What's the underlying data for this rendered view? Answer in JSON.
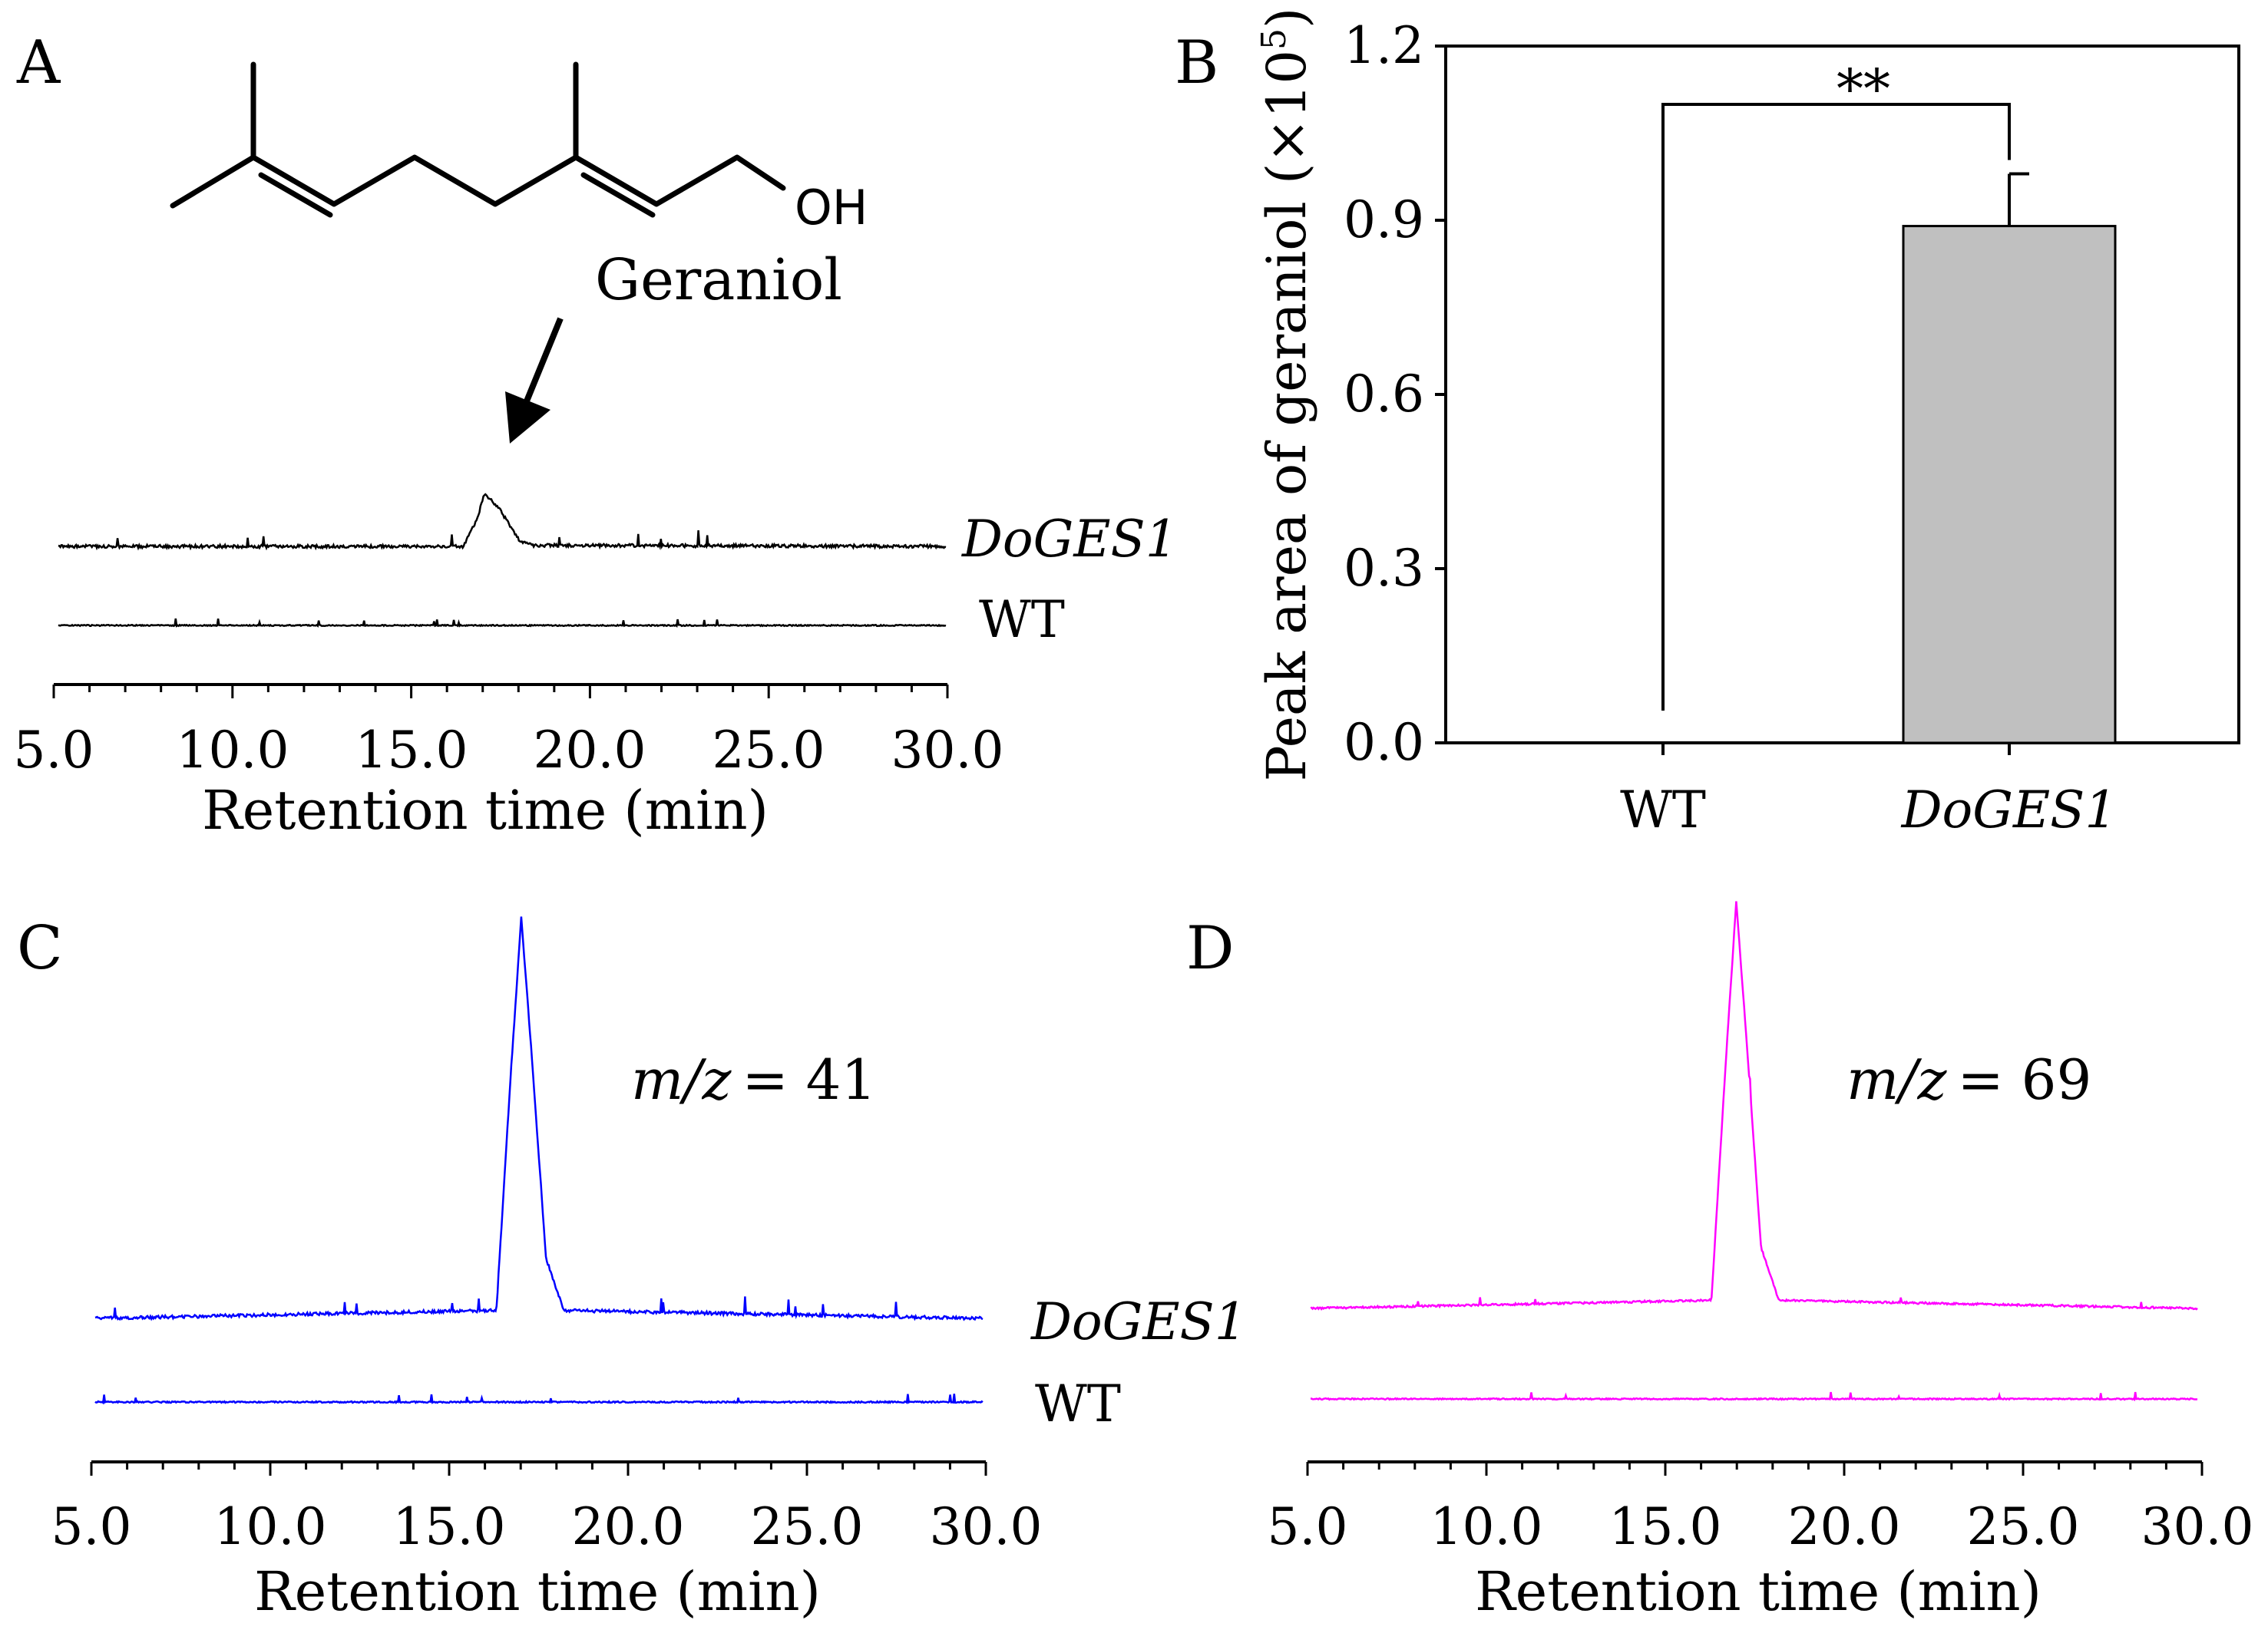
{
  "panels": {
    "A": {
      "letter": "A",
      "compound_name": "Geraniol",
      "hydroxyl_label": "OH",
      "hydroxyl_color": "#ff0000",
      "trace_color": "#000000",
      "xlabel": "Retention time (min)",
      "xlim": [
        5.0,
        30.0
      ],
      "ticks": [
        "5.0",
        "10.0",
        "15.0",
        "20.0",
        "25.0",
        "30.0"
      ],
      "traces": [
        {
          "name": "DoGES1",
          "peak_time": 17.0
        },
        {
          "name": "WT",
          "peak_time": null
        }
      ]
    },
    "B": {
      "letter": "B",
      "ylabel": "Peak area of geraniol (×10",
      "ylabel_exp": "5",
      "ylabel_close": ")",
      "significance": "**",
      "bar_color": "#c0c0c0"
    },
    "C": {
      "letter": "C",
      "mz_label": "m/z",
      "mz_value": "= 41",
      "trace_color": "#0000ff",
      "xlabel": "Retention time (min)",
      "ticks": [
        "5.0",
        "10.0",
        "15.0",
        "20.0",
        "25.0",
        "30.0"
      ],
      "traces": [
        {
          "name": "DoGES1",
          "peak_time": 17.0
        },
        {
          "name": "WT",
          "peak_time": null
        }
      ]
    },
    "D": {
      "letter": "D",
      "mz_label": "m/z",
      "mz_value": "= 69",
      "trace_color": "#ff00ff",
      "xlabel": "Retention time (min)",
      "ticks": [
        "5.0",
        "10.0",
        "15.0",
        "20.0",
        "25.0",
        "30.0"
      ],
      "traces": [
        {
          "name": "DoGES1",
          "peak_time": 17.0
        },
        {
          "name": "WT",
          "peak_time": null
        }
      ]
    }
  },
  "chart_data": [
    {
      "panel": "A",
      "type": "line",
      "title": "",
      "xlabel": "Retention time (min)",
      "ylabel": "",
      "xlim": [
        5.0,
        30.0
      ],
      "series": [
        {
          "name": "DoGES1",
          "x": [
            5.0,
            16.4,
            16.8,
            17.0,
            17.4,
            18.0,
            18.4,
            30.0
          ],
          "values": [
            0,
            0,
            0.5,
            0.95,
            0.7,
            0.1,
            0.02,
            0
          ]
        },
        {
          "name": "WT",
          "x": [
            5.0,
            30.0
          ],
          "values": [
            0,
            0
          ]
        }
      ]
    },
    {
      "panel": "B",
      "type": "bar",
      "title": "",
      "xlabel": "",
      "ylabel": "Peak area of geraniol (×10^5)",
      "categories": [
        "WT",
        "DoGES1"
      ],
      "values": [
        0.0,
        0.89
      ],
      "errors": [
        0.0,
        0.09
      ],
      "ylim": [
        0.0,
        1.2
      ],
      "yticks": [
        "0.0",
        "0.3",
        "0.6",
        "0.9",
        "1.2"
      ],
      "annotation": "**"
    },
    {
      "panel": "C",
      "type": "line",
      "title": "m/z = 41",
      "xlabel": "Retention time (min)",
      "ylabel": "",
      "xlim": [
        5.0,
        30.0
      ],
      "series": [
        {
          "name": "DoGES1",
          "x": [
            5.0,
            16.3,
            16.7,
            17.0,
            17.3,
            17.7,
            18.2,
            30.0
          ],
          "values": [
            0,
            0.02,
            0.6,
            1.0,
            0.65,
            0.15,
            0.02,
            0
          ]
        },
        {
          "name": "WT",
          "x": [
            5.0,
            30.0
          ],
          "values": [
            0,
            0
          ]
        }
      ]
    },
    {
      "panel": "D",
      "type": "line",
      "title": "m/z = 69",
      "xlabel": "Retention time (min)",
      "ylabel": "",
      "xlim": [
        5.0,
        30.0
      ],
      "series": [
        {
          "name": "DoGES1",
          "x": [
            5.0,
            16.3,
            16.7,
            17.0,
            17.3,
            17.7,
            18.2,
            30.0
          ],
          "values": [
            0,
            0.02,
            0.6,
            1.0,
            0.65,
            0.15,
            0.02,
            0
          ]
        },
        {
          "name": "WT",
          "x": [
            5.0,
            30.0
          ],
          "values": [
            0,
            0
          ]
        }
      ]
    }
  ]
}
